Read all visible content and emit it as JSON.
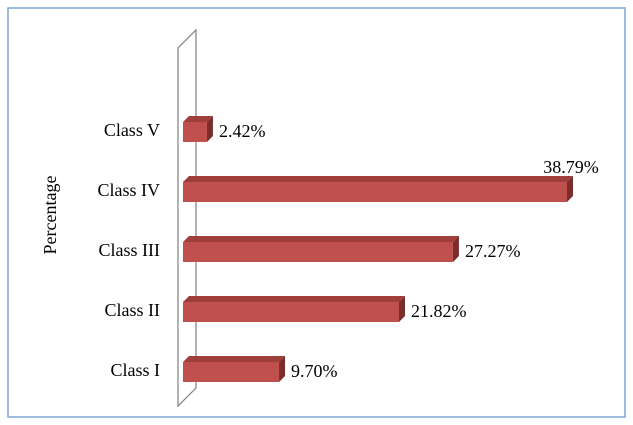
{
  "chart_data": {
    "type": "bar",
    "orientation": "horizontal",
    "y_label": "Percentage",
    "categories": [
      "Class I",
      "Class II",
      "Class III",
      "Class IV",
      "Class V"
    ],
    "values": [
      9.7,
      21.82,
      27.27,
      38.79,
      2.42
    ],
    "value_labels": [
      "9.70%",
      "21.82%",
      "27.27%",
      "38.79%",
      "2.42%"
    ],
    "color": "#c0504d"
  }
}
